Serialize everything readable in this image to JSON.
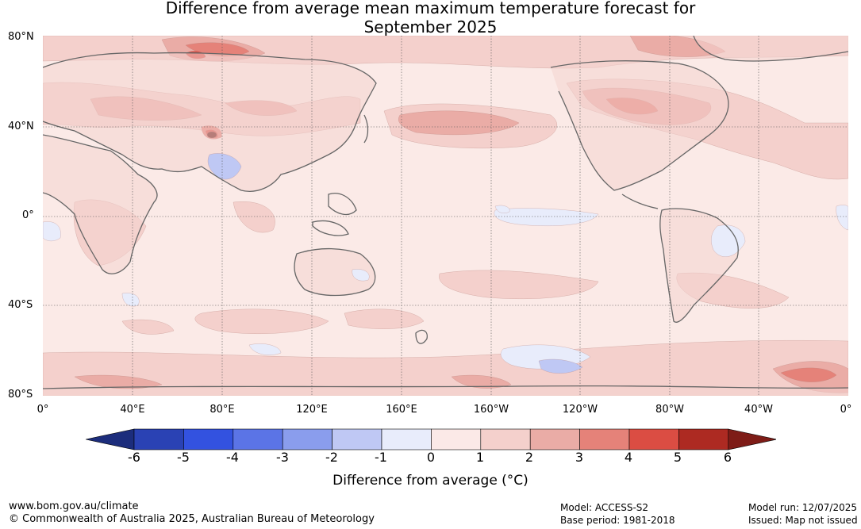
{
  "title_line1": "Difference from average mean maximum temperature forecast for",
  "title_line2": "September 2025",
  "lat_labels": [
    "80°N",
    "40°N",
    "0°",
    "40°S",
    "80°S"
  ],
  "lon_labels": [
    "0°",
    "40°E",
    "80°E",
    "120°E",
    "160°E",
    "160°W",
    "120°W",
    "80°W",
    "40°W",
    "0°"
  ],
  "colorbar": {
    "ticks": [
      "-6",
      "-5",
      "-4",
      "-3",
      "-2",
      "-1",
      "0",
      "1",
      "2",
      "3",
      "4",
      "5",
      "6"
    ],
    "label": "Difference from average (°C)",
    "colors": [
      "#1c2d7c",
      "#2a42b4",
      "#3352e0",
      "#5b74e6",
      "#8a9ded",
      "#bfc8f4",
      "#e8ecfb",
      "#fbe9e7",
      "#f4d0cc",
      "#eaaca6",
      "#e58279",
      "#db4d43",
      "#ad2a22",
      "#7e1c17"
    ]
  },
  "footer": {
    "url": "www.bom.gov.au/climate",
    "copyright": "© Commonwealth of Australia 2025, Australian Bureau of Meteorology",
    "model": "Model: ACCESS-S2",
    "base_period": "Base period: 1981-2018",
    "model_run": "Model run: 12/07/2025",
    "issued": "Issued: Map not issued"
  },
  "map_colors": {
    "ocean_base": "#fbeae7",
    "land_base": "#f4d3cf",
    "warm1": "#f4d0cc",
    "warm2": "#eaaca6",
    "warm3": "#e58279",
    "warm4": "#db4d43",
    "warm5": "#ad2a22",
    "hot": "#6b1410",
    "cool1": "#e8ecfb",
    "cool2": "#bfc8f4",
    "coast": "#666666",
    "grid": "#555555"
  }
}
